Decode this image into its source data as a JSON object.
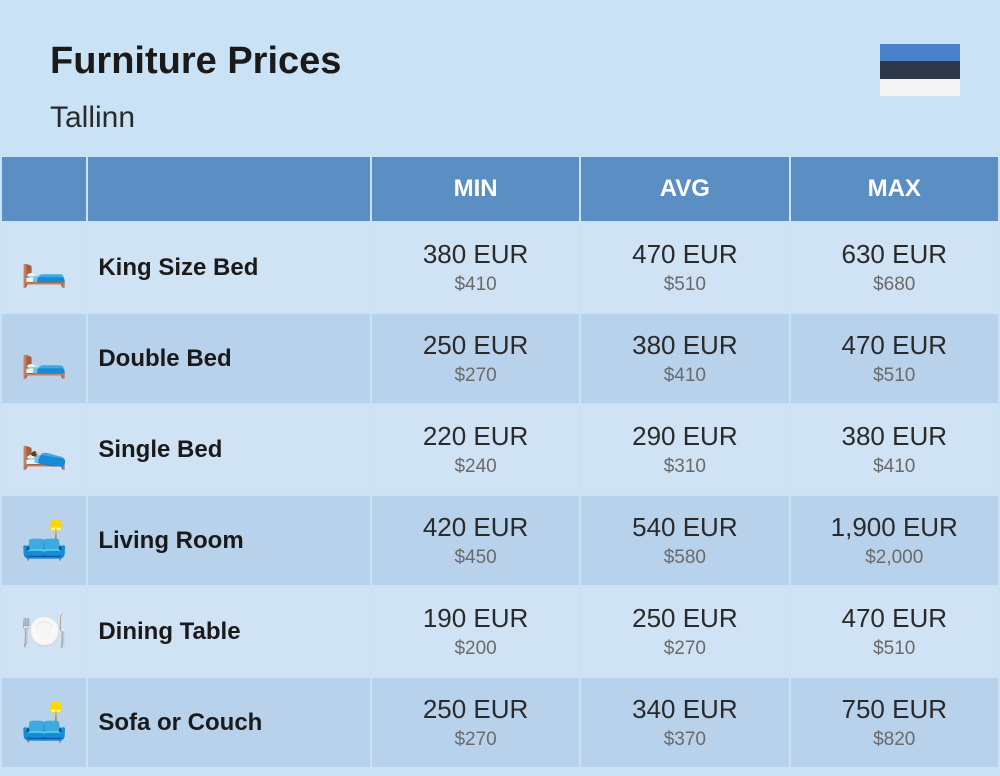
{
  "title": "Furniture Prices",
  "subtitle": "Tallinn",
  "flag": {
    "top": "#4a7fc9",
    "middle": "#2d3748",
    "bottom": "#f5f5f5"
  },
  "columns": [
    "MIN",
    "AVG",
    "MAX"
  ],
  "rows": [
    {
      "icon": "🛏️",
      "name": "King Size Bed",
      "min_eur": "380 EUR",
      "min_usd": "$410",
      "avg_eur": "470 EUR",
      "avg_usd": "$510",
      "max_eur": "630 EUR",
      "max_usd": "$680"
    },
    {
      "icon": "🛏️",
      "name": "Double Bed",
      "min_eur": "250 EUR",
      "min_usd": "$270",
      "avg_eur": "380 EUR",
      "avg_usd": "$410",
      "max_eur": "470 EUR",
      "max_usd": "$510"
    },
    {
      "icon": "🛌",
      "name": "Single Bed",
      "min_eur": "220 EUR",
      "min_usd": "$240",
      "avg_eur": "290 EUR",
      "avg_usd": "$310",
      "max_eur": "380 EUR",
      "max_usd": "$410"
    },
    {
      "icon": "🛋️",
      "name": "Living Room",
      "min_eur": "420 EUR",
      "min_usd": "$450",
      "avg_eur": "540 EUR",
      "avg_usd": "$580",
      "max_eur": "1,900 EUR",
      "max_usd": "$2,000"
    },
    {
      "icon": "🍽️",
      "name": "Dining Table",
      "min_eur": "190 EUR",
      "min_usd": "$200",
      "avg_eur": "250 EUR",
      "avg_usd": "$270",
      "max_eur": "470 EUR",
      "max_usd": "$510"
    },
    {
      "icon": "🛋️",
      "name": "Sofa or Couch",
      "min_eur": "250 EUR",
      "min_usd": "$270",
      "avg_eur": "340 EUR",
      "avg_usd": "$370",
      "max_eur": "750 EUR",
      "max_usd": "$820"
    }
  ],
  "styling": {
    "page_bg": "#c9e2f5",
    "header_bg": "#5b8fc4",
    "header_text": "#ffffff",
    "row_odd_bg": "#d0e3f4",
    "row_even_bg": "#b9d2ec",
    "title_color": "#1a1a1a",
    "sub_price_color": "#6a6a6a"
  }
}
